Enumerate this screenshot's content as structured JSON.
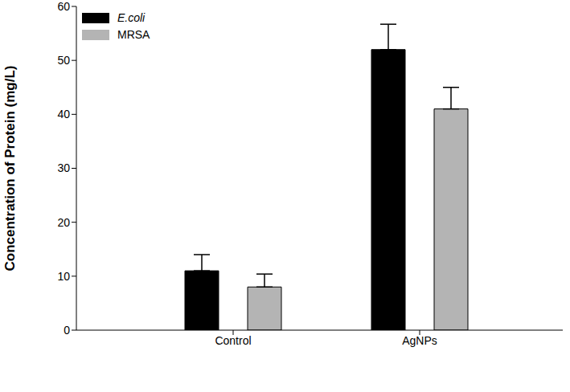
{
  "chart_data": {
    "type": "bar",
    "categories": [
      "Control",
      "AgNPs"
    ],
    "y_label": "Concentration of Protein (mg/L)",
    "series": [
      {
        "name": "E.coli",
        "color": "#000000",
        "values": [
          11,
          52
        ],
        "errors": [
          3,
          4.7
        ]
      },
      {
        "name": "MRSA",
        "color": "#b4b4b4",
        "values": [
          8,
          41
        ],
        "errors": [
          2.4,
          4
        ]
      }
    ],
    "ylim": [
      0,
      60
    ],
    "yticks": [
      0,
      10,
      20,
      30,
      40,
      50,
      60
    ],
    "grid": false,
    "legend": "upper left"
  }
}
